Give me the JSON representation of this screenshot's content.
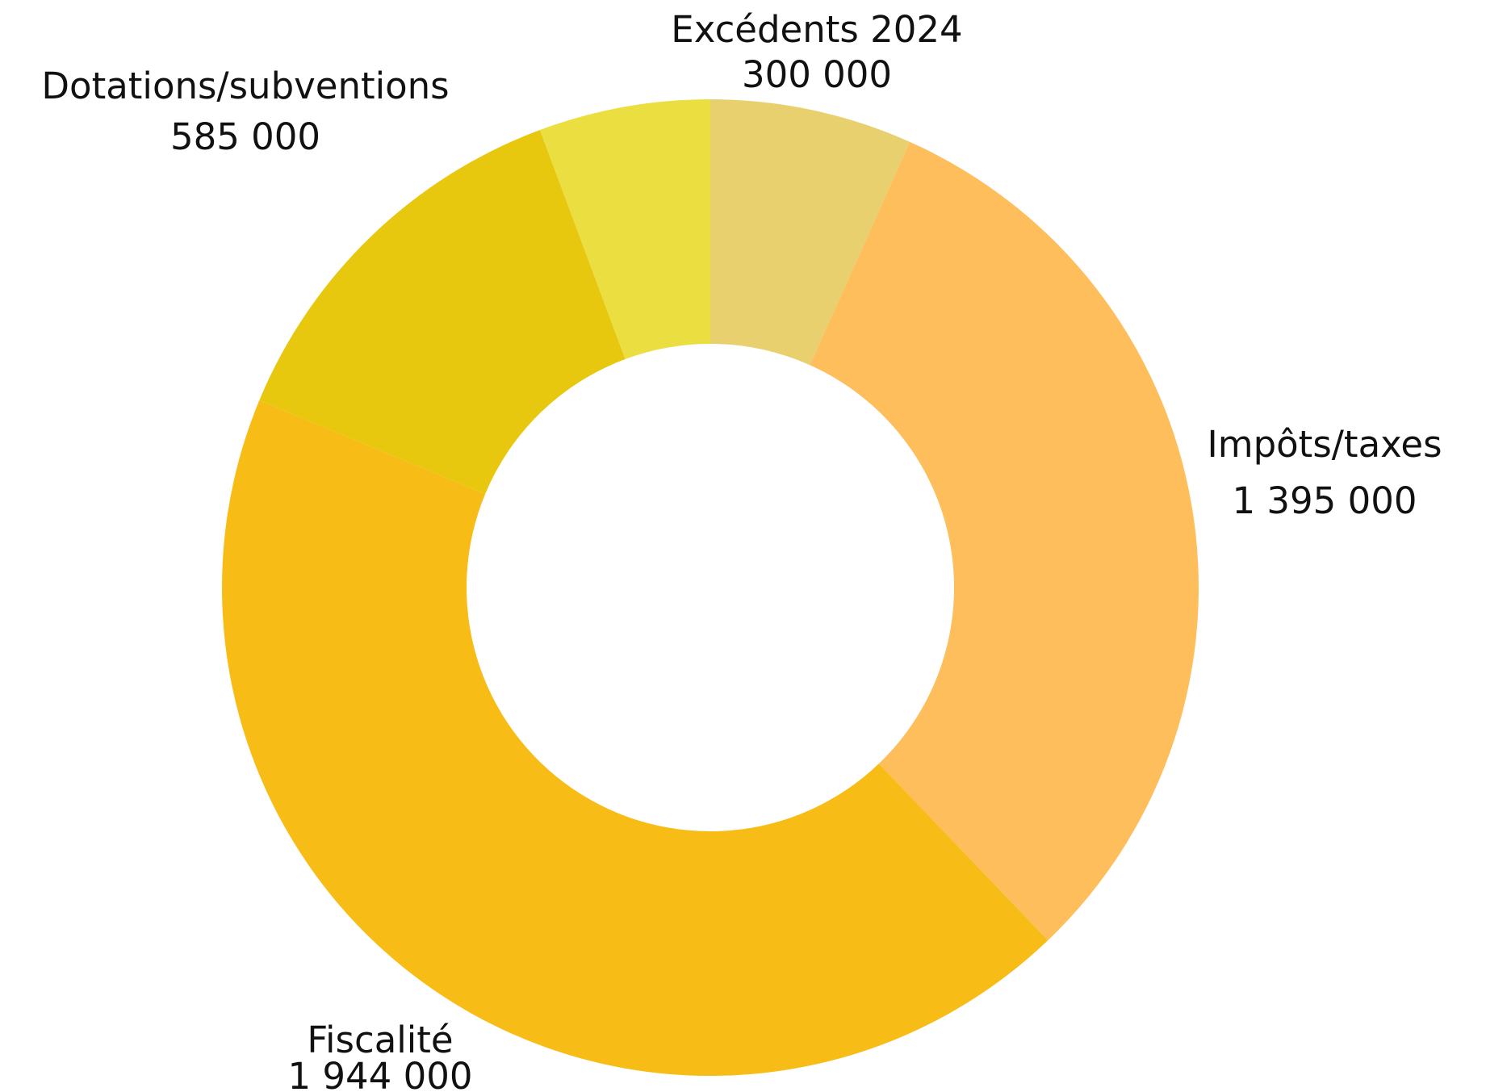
{
  "chart_data": {
    "type": "pie",
    "variant": "donut",
    "title": "",
    "slices": [
      {
        "label": "Excédents 2024",
        "value_text": "300 000",
        "value": 300000,
        "color": "#E7D06D"
      },
      {
        "label": "Impôts/taxes",
        "value_text": "1 395 000",
        "value": 1395000,
        "color": "#FDBE5B"
      },
      {
        "label": "Fiscalité",
        "value_text": "1 944 000",
        "value": 1944000,
        "color": "#F7BC15"
      },
      {
        "label": "Dotations/subventions",
        "value_text": "585 000",
        "value": 585000,
        "color": "#E7C80F"
      },
      {
        "label": "",
        "value": 254000,
        "color": "#EADE40"
      }
    ]
  }
}
